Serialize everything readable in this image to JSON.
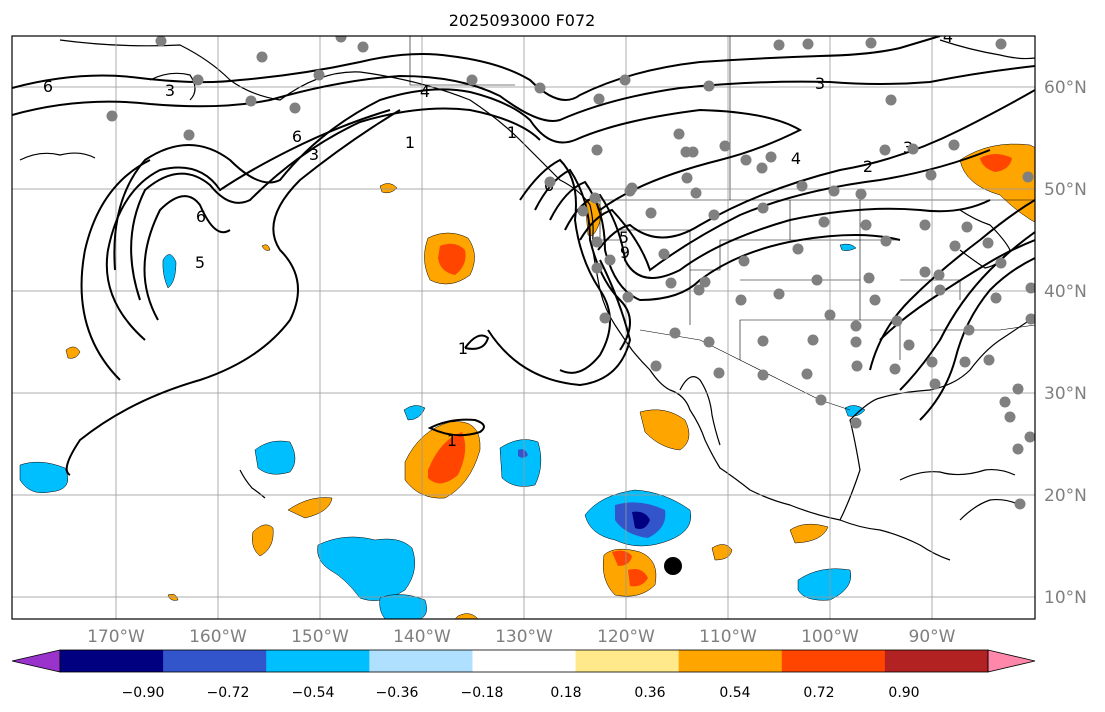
{
  "title": "2025093000 F072",
  "lat_labels": [
    "60°N",
    "50°N",
    "40°N",
    "30°N",
    "20°N",
    "10°N"
  ],
  "lon_labels": [
    "170°W",
    "160°W",
    "150°W",
    "140°W",
    "130°W",
    "120°W",
    "110°W",
    "100°W",
    "90°W"
  ],
  "colorbar": {
    "ticks": [
      "−0.90",
      "−0.72",
      "−0.54",
      "−0.36",
      "−0.18",
      "0.18",
      "0.36",
      "0.54",
      "0.72",
      "0.90"
    ],
    "colors": [
      "#9933cc",
      "#000080",
      "#3355cc",
      "#00bfff",
      "#b0e0ff",
      "#ffffff",
      "#ffe98a",
      "#ffa500",
      "#ff4500",
      "#b22222",
      "#ff88aa"
    ]
  },
  "contour_labels": [
    "6",
    "3",
    "4",
    "1",
    "6",
    "3",
    "1",
    "3",
    "2",
    "4",
    "3",
    "6",
    "5",
    "5",
    "9",
    "6",
    "1",
    "1",
    "4"
  ],
  "colors": {
    "station_dot": "#808080",
    "marker": "#000000",
    "grid": "#9a9a9a"
  }
}
